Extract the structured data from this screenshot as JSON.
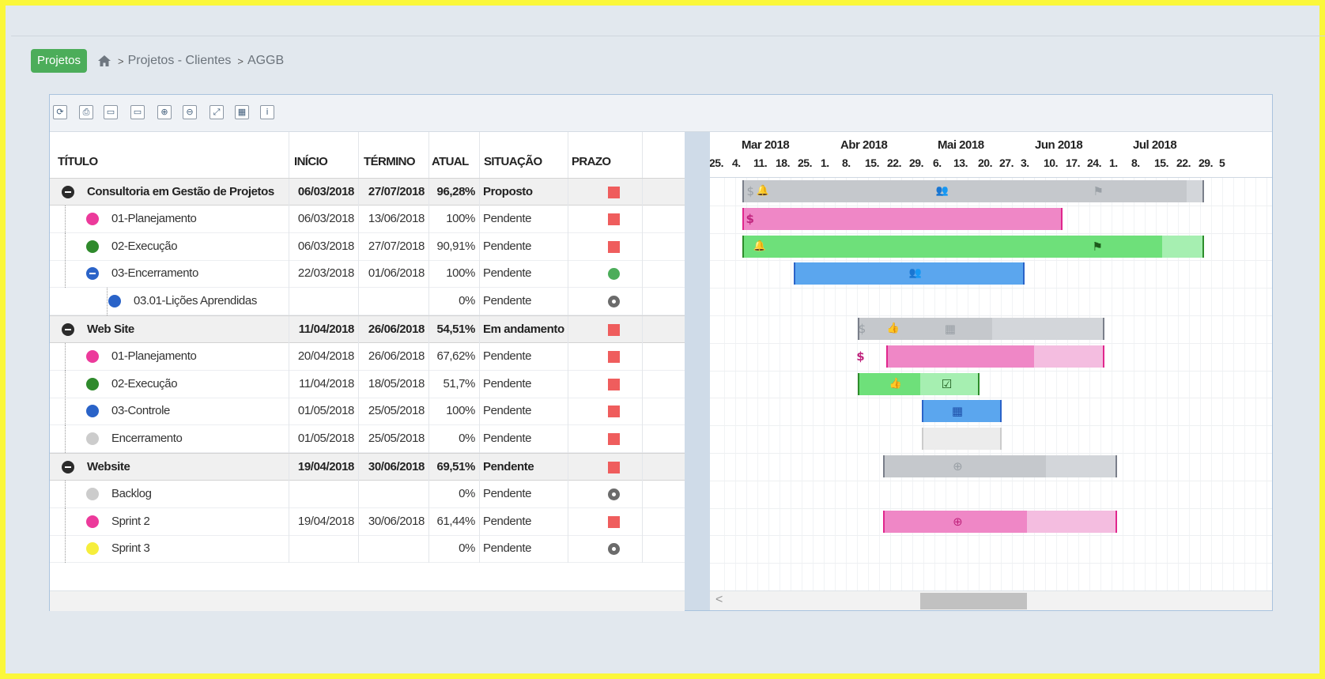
{
  "breadcrumb": {
    "projects_button": "Projetos",
    "home_icon": "home-icon",
    "items": [
      "Projetos - Clientes",
      "AGGB"
    ]
  },
  "toolbar": {
    "icons": [
      "refresh-icon",
      "print-icon",
      "open-folder-icon",
      "folder-icon",
      "zoom-in-icon",
      "zoom-out-icon",
      "zoom-fit-icon",
      "calendar-icon",
      "info-icon"
    ]
  },
  "grid": {
    "columns": {
      "title": "TÍTULO",
      "start": "INÍCIO",
      "end": "TÉRMINO",
      "actual": "ATUAL",
      "status": "SITUAÇÃO",
      "deadline": "PRAZO"
    },
    "rows": [
      {
        "title": "Consultoria em Gestão de Projetos",
        "start": "06/03/2018",
        "end": "27/07/2018",
        "actual": "96,28%",
        "status": "Proposto",
        "type": "group",
        "prazo": "late"
      },
      {
        "title": "01-Planejamento",
        "start": "06/03/2018",
        "end": "13/06/2018",
        "actual": "100%",
        "status": "Pendente",
        "type": "task",
        "color": "#ec3a9b",
        "prazo": "late"
      },
      {
        "title": "02-Execução",
        "start": "06/03/2018",
        "end": "27/07/2018",
        "actual": "90,91%",
        "status": "Pendente",
        "type": "task",
        "color": "#2f8a2c",
        "prazo": "late"
      },
      {
        "title": "03-Encerramento",
        "start": "22/03/2018",
        "end": "01/06/2018",
        "actual": "100%",
        "status": "Pendente",
        "type": "subgroup",
        "prazo": "ok"
      },
      {
        "title": "03.01-Lições Aprendidas",
        "start": "",
        "end": "",
        "actual": "0%",
        "status": "Pendente",
        "type": "subtask",
        "color": "#2a63c8",
        "prazo": "none"
      },
      {
        "title": "Web Site",
        "start": "11/04/2018",
        "end": "26/06/2018",
        "actual": "54,51%",
        "status": "Em andamento",
        "type": "group",
        "prazo": "late"
      },
      {
        "title": "01-Planejamento",
        "start": "20/04/2018",
        "end": "26/06/2018",
        "actual": "67,62%",
        "status": "Pendente",
        "type": "task",
        "color": "#ec3a9b",
        "prazo": "late"
      },
      {
        "title": "02-Execução",
        "start": "11/04/2018",
        "end": "18/05/2018",
        "actual": "51,7%",
        "status": "Pendente",
        "type": "task",
        "color": "#2f8a2c",
        "prazo": "late"
      },
      {
        "title": "03-Controle",
        "start": "01/05/2018",
        "end": "25/05/2018",
        "actual": "100%",
        "status": "Pendente",
        "type": "task",
        "color": "#2a63c8",
        "prazo": "late"
      },
      {
        "title": "Encerramento",
        "start": "01/05/2018",
        "end": "25/05/2018",
        "actual": "0%",
        "status": "Pendente",
        "type": "task",
        "color": "#cccccc",
        "prazo": "late"
      },
      {
        "title": "Website",
        "start": "19/04/2018",
        "end": "30/06/2018",
        "actual": "69,51%",
        "status": "Pendente",
        "type": "group",
        "prazo": "late"
      },
      {
        "title": "Backlog",
        "start": "",
        "end": "",
        "actual": "0%",
        "status": "Pendente",
        "type": "task",
        "color": "#cccccc",
        "prazo": "none"
      },
      {
        "title": "Sprint 2",
        "start": "19/04/2018",
        "end": "30/06/2018",
        "actual": "61,44%",
        "status": "Pendente",
        "type": "task",
        "color": "#ec3a9b",
        "prazo": "late"
      },
      {
        "title": "Sprint 3",
        "start": "",
        "end": "",
        "actual": "0%",
        "status": "Pendente",
        "type": "task",
        "color": "#f6ee3c",
        "prazo": "none"
      }
    ]
  },
  "gantt": {
    "months": [
      "Mar 2018",
      "Abr 2018",
      "Mai 2018",
      "Jun 2018",
      "Jul 2018"
    ],
    "days": [
      "25.",
      "4.",
      "11.",
      "18.",
      "25.",
      "1.",
      "8.",
      "15.",
      "22.",
      "29.",
      "6.",
      "13.",
      "20.",
      "27.",
      "3.",
      "10.",
      "17.",
      "24.",
      "1.",
      "8.",
      "15.",
      "22.",
      "29.",
      "5"
    ],
    "colors": {
      "group": "#d3d6da",
      "group_done": "#c5c8cc",
      "pink": "#ef87c6",
      "pink_light": "#f4bde0",
      "green": "#6ee07a",
      "green_light": "#a6efb1",
      "blue": "#5ba6ee",
      "light": "#ececec",
      "tick_dark": "#7a7f8a",
      "tick_pink": "#e0278d",
      "tick_green": "#2d8c2a",
      "tick_blue": "#2a63c8"
    }
  }
}
